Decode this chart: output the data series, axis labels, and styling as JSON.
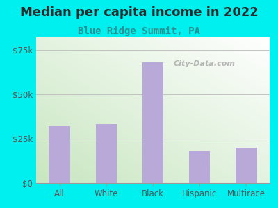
{
  "title": "Median per capita income in 2022",
  "subtitle": "Blue Ridge Summit, PA",
  "categories": [
    "All",
    "White",
    "Black",
    "Hispanic",
    "Multirace"
  ],
  "values": [
    32000,
    33000,
    68000,
    18000,
    20000
  ],
  "bar_color": "#b8a9d9",
  "title_fontsize": 13,
  "subtitle_fontsize": 10,
  "subtitle_color": "#2a9090",
  "title_color": "#2a2a2a",
  "background_outer": "#00f0f0",
  "yticks": [
    0,
    25000,
    50000,
    75000
  ],
  "ytick_labels": [
    "$0",
    "$25k",
    "$50k",
    "$75k"
  ],
  "ylim": [
    0,
    82000
  ],
  "tick_color": "#555555",
  "watermark": "City-Data.com",
  "grad_color_bottom_left": "#c8e6c0",
  "grad_color_top_right": "#ffffff"
}
